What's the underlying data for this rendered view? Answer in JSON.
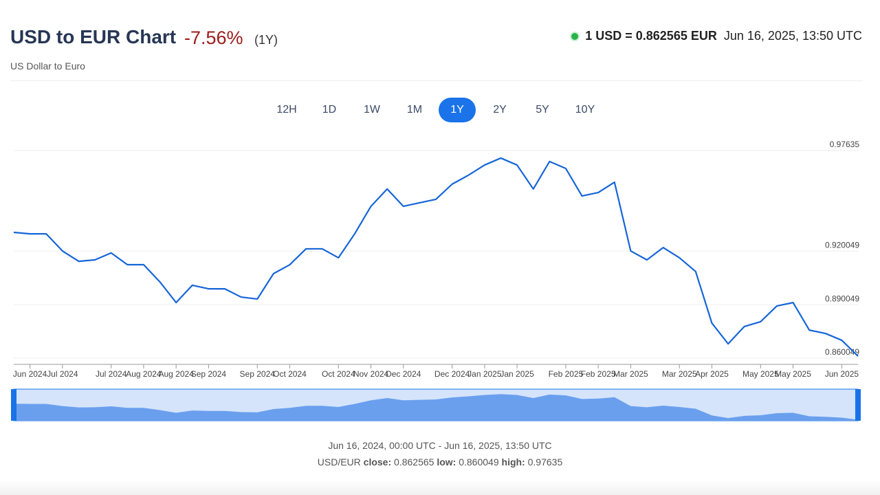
{
  "header": {
    "title": "USD to EUR Chart",
    "change": "-7.56%",
    "period": "(1Y)",
    "subtitle": "US Dollar to Euro",
    "rate": "1 USD = 0.862565 EUR",
    "time": "Jun 16, 2025, 13:50 UTC"
  },
  "ranges": {
    "buttons": [
      "12H",
      "1D",
      "1W",
      "1M",
      "1Y",
      "2Y",
      "5Y",
      "10Y"
    ],
    "active": "1Y"
  },
  "chart_data": {
    "type": "line",
    "color": "#1565d8",
    "grid": true,
    "values": [
      0.9305,
      0.9297,
      0.9297,
      0.9201,
      0.9143,
      0.9151,
      0.919,
      0.9124,
      0.9124,
      0.9028,
      0.8912,
      0.9009,
      0.8989,
      0.8989,
      0.8943,
      0.8932,
      0.9074,
      0.9124,
      0.9213,
      0.9213,
      0.9163,
      0.9297,
      0.9451,
      0.9548,
      0.9451,
      0.9471,
      0.949,
      0.9575,
      0.9625,
      0.9682,
      0.9721,
      0.9682,
      0.9548,
      0.9702,
      0.9663,
      0.9509,
      0.9528,
      0.9586,
      0.9201,
      0.9151,
      0.922,
      0.9163,
      0.9086,
      0.8797,
      0.8681,
      0.8778,
      0.8805,
      0.8893,
      0.8912,
      0.8758,
      0.8739,
      0.8701,
      0.8612
    ],
    "ylim": [
      0.8566,
      0.9817
    ],
    "yticks": [
      0.860049,
      0.890049,
      0.920049,
      0.97635
    ],
    "xlim": [
      0,
      52
    ],
    "xticks": [
      {
        "value": 1,
        "label": "Jun 2024"
      },
      {
        "value": 3,
        "label": "Jul 2024"
      },
      {
        "value": 6,
        "label": "Jul 2024"
      },
      {
        "value": 8,
        "label": "Aug 2024"
      },
      {
        "value": 10,
        "label": "Aug 2024"
      },
      {
        "value": 12,
        "label": "Sep 2024"
      },
      {
        "value": 15,
        "label": "Sep 2024"
      },
      {
        "value": 17,
        "label": "Oct 2024"
      },
      {
        "value": 20,
        "label": "Oct 2024"
      },
      {
        "value": 22,
        "label": "Nov 2024"
      },
      {
        "value": 24,
        "label": "Dec 2024"
      },
      {
        "value": 27,
        "label": "Dec 2024"
      },
      {
        "value": 29,
        "label": "Jan 2025"
      },
      {
        "value": 31,
        "label": "Jan 2025"
      },
      {
        "value": 34,
        "label": "Feb 2025"
      },
      {
        "value": 36,
        "label": "Feb 2025"
      },
      {
        "value": 38,
        "label": "Mar 2025"
      },
      {
        "value": 41,
        "label": "Mar 2025"
      },
      {
        "value": 43,
        "label": "Apr 2025"
      },
      {
        "value": 46,
        "label": "May 2025"
      },
      {
        "value": 48,
        "label": "May 2025"
      },
      {
        "value": 51,
        "label": "Jun 2025"
      }
    ]
  },
  "footer": {
    "range": "Jun 16, 2024, 00:00 UTC - Jun 16, 2025, 13:50 UTC",
    "pair": "USD/EUR",
    "close_label": "close:",
    "close": "0.862565",
    "low_label": "low:",
    "low": "0.860049",
    "high_label": "high:",
    "high": "0.97635"
  }
}
